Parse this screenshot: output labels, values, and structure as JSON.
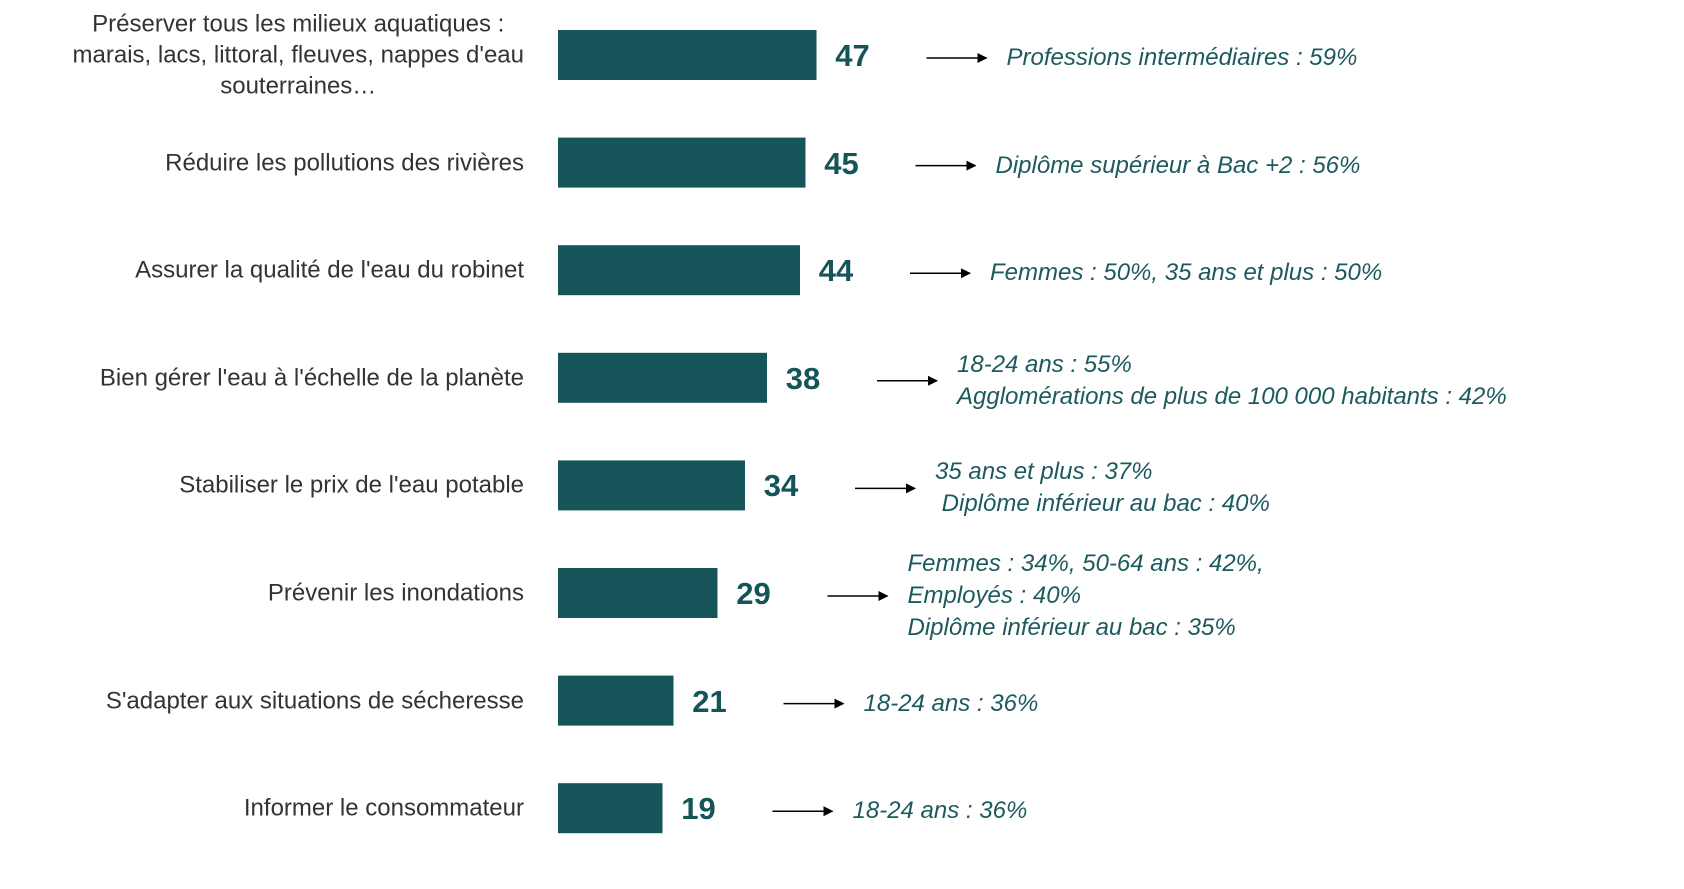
{
  "chart_data": {
    "type": "bar",
    "orientation": "horizontal",
    "color": "#155458",
    "categories": [
      "Préserver tous les milieux aquatiques :\nmarais, lacs, littoral, fleuves, nappes d'eau\nsouterraines…",
      "Réduire les pollutions des rivières",
      "Assurer la qualité de l'eau du robinet",
      "Bien gérer l'eau à l'échelle de la planète",
      "Stabiliser le prix de l'eau potable",
      "Prévenir les inondations",
      "S'adapter aux situations de sécheresse",
      "Informer le consommateur"
    ],
    "values": [
      47,
      45,
      44,
      38,
      34,
      29,
      21,
      19
    ],
    "annotations": [
      [
        "Professions intermédiaires : 59%"
      ],
      [
        "Diplôme supérieur à Bac +2 : 56%"
      ],
      [
        "Femmes : 50%, 35 ans et plus : 50%"
      ],
      [
        "18-24 ans : 55%",
        "Agglomérations de plus de 100 000 habitants : 42%"
      ],
      [
        "35 ans et plus : 37%",
        " Diplôme inférieur au bac : 40%"
      ],
      [
        "Femmes : 34%, 50-64 ans : 42%,",
        "Employés : 40%",
        "Diplôme inférieur au bac : 35%"
      ],
      [
        "18-24 ans : 36%"
      ],
      [
        "18-24 ans : 36%"
      ]
    ]
  }
}
